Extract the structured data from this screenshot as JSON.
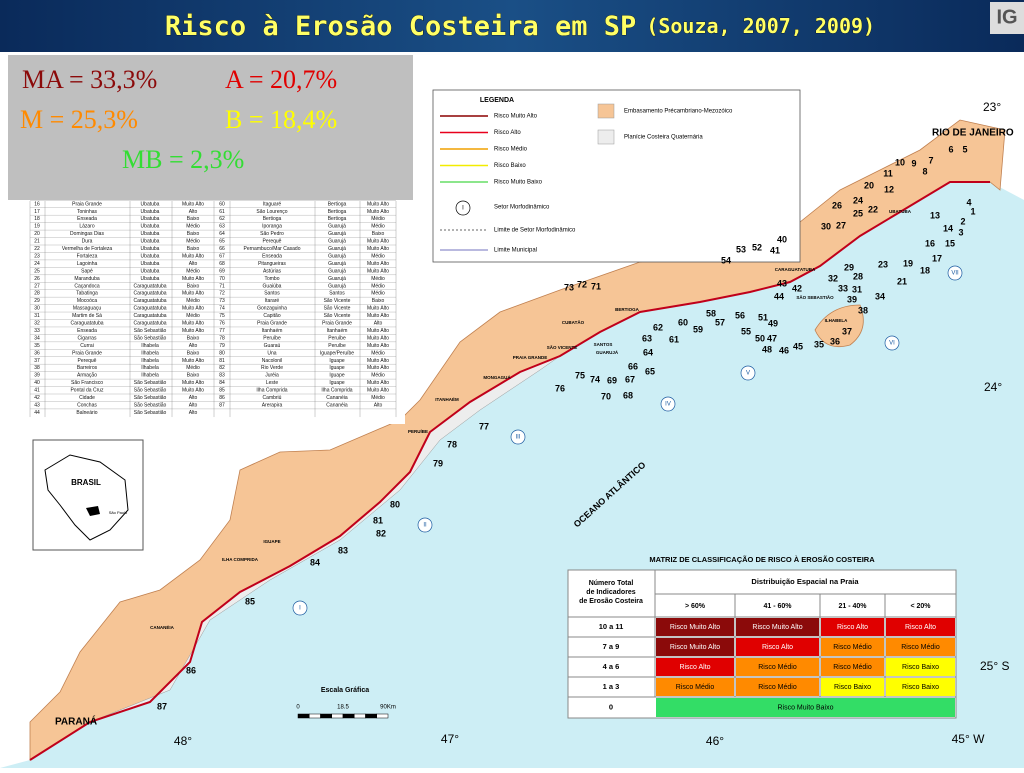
{
  "header": {
    "title": "Risco à Erosão Costeira em SP",
    "citation": "(Souza, 2007, 2009)",
    "logo": "IG"
  },
  "summary": [
    {
      "text": "MA = 33,3%",
      "color": "#8b0a0a"
    },
    {
      "text": "A = 20,7%",
      "color": "#e00000"
    },
    {
      "text": "M = 25,3%",
      "color": "#ff8a00"
    },
    {
      "text": "B = 18,4%",
      "color": "#ffff00"
    },
    {
      "text": "MB = 2,3%",
      "color": "#33dd33"
    }
  ],
  "beach_table": {
    "rows": [
      [
        "16",
        "Praia Grande",
        "Ubatuba",
        "Muito Alto",
        "60",
        "Itaguaré",
        "Bertioga",
        "Muito Alto"
      ],
      [
        "17",
        "Toninhas",
        "Ubatuba",
        "Alto",
        "61",
        "São Lourenço",
        "Bertioga",
        "Muito Alto"
      ],
      [
        "18",
        "Enseada",
        "Ubatuba",
        "Baixo",
        "62",
        "Bertioga",
        "Bertioga",
        "Médio"
      ],
      [
        "19",
        "Lázaro",
        "Ubatuba",
        "Médio",
        "63",
        "Iporanga",
        "Guarujá",
        "Médio"
      ],
      [
        "20",
        "Domingas Dias",
        "Ubatuba",
        "Baixo",
        "64",
        "São Pedro",
        "Guarujá",
        "Baixo"
      ],
      [
        "21",
        "Dura",
        "Ubatuba",
        "Médio",
        "65",
        "Perequê",
        "Guarujá",
        "Muito Alto"
      ],
      [
        "22",
        "Vermelha de Fortaleza",
        "Ubatuba",
        "Baixo",
        "66",
        "Pernambuco/Mar Casado",
        "Guarujá",
        "Muito Alto"
      ],
      [
        "23",
        "Fortaleza",
        "Ubatuba",
        "Muito Alto",
        "67",
        "Enseada",
        "Guarujá",
        "Médio"
      ],
      [
        "24",
        "Lagoinha",
        "Ubatuba",
        "Alto",
        "68",
        "Pitangueiras",
        "Guarujá",
        "Muito Alto"
      ],
      [
        "25",
        "Sapé",
        "Ubatuba",
        "Médio",
        "69",
        "Astúrias",
        "Guarujá",
        "Muito Alto"
      ],
      [
        "26",
        "Maranduba",
        "Ubatuba",
        "Muito Alto",
        "70",
        "Tombo",
        "Guarujá",
        "Médio"
      ],
      [
        "27",
        "Caçandoca",
        "Caraguatatuba",
        "Baixo",
        "71",
        "Guaiúba",
        "Guarujá",
        "Médio"
      ],
      [
        "28",
        "Tabatinga",
        "Caraguatatuba",
        "Muito Alto",
        "72",
        "Santos",
        "Santos",
        "Médio"
      ],
      [
        "29",
        "Mocoóca",
        "Caraguatatuba",
        "Médio",
        "73",
        "Itararé",
        "São Vicente",
        "Baixo"
      ],
      [
        "30",
        "Massaguaçu",
        "Caraguatatuba",
        "Muito Alto",
        "74",
        "Gonzaguinha",
        "São Vicente",
        "Muito Alto"
      ],
      [
        "31",
        "Martim de Sá",
        "Caraguatatuba",
        "Médio",
        "75",
        "Capitão",
        "São Vicente",
        "Muito Alto"
      ],
      [
        "32",
        "Caraguatatuba",
        "Caraguatatuba",
        "Muito Alto",
        "76",
        "Praia Grande",
        "Praia Grande",
        "Alto"
      ],
      [
        "33",
        "Enseada",
        "São Sebastião",
        "Muito Alto",
        "77",
        "Itanhaém",
        "Itanhaém",
        "Muito Alto"
      ],
      [
        "34",
        "Cigarras",
        "São Sebastião",
        "Baixo",
        "78",
        "Peruíbe",
        "Peruíbe",
        "Muito Alto"
      ],
      [
        "35",
        "Currai",
        "Ilhabela",
        "Alto",
        "79",
        "Guaraú",
        "Peruíbe",
        "Muito Alto"
      ],
      [
        "36",
        "Praia Grande",
        "Ilhabela",
        "Baixo",
        "80",
        "Una",
        "Iguape/Peruíbe",
        "Médio"
      ],
      [
        "37",
        "Perequê",
        "Ilhabela",
        "Muito Alto",
        "81",
        "Nacolonil",
        "Iguape",
        "Muito Alto"
      ],
      [
        "38",
        "Barreiros",
        "Ilhabela",
        "Médio",
        "82",
        "Rio Verde",
        "Iguape",
        "Muito Alto"
      ],
      [
        "39",
        "Armação",
        "Ilhabela",
        "Baixo",
        "83",
        "Juréia",
        "Iguape",
        "Médio"
      ],
      [
        "40",
        "São Francisco",
        "São Sebastião",
        "Muito Alto",
        "84",
        "Leste",
        "Iguape",
        "Muito Alto"
      ],
      [
        "41",
        "Pontal da Cruz",
        "São Sebastião",
        "Muito Alto",
        "85",
        "Ilha Comprida",
        "Ilha Comprida",
        "Muito Alto"
      ],
      [
        "42",
        "Cidade",
        "São Sebastião",
        "Alto",
        "86",
        "Cambriú",
        "Cananéia",
        "Médio"
      ],
      [
        "43",
        "Conchas",
        "São Sebastião",
        "Alto",
        "87",
        "Arerapira",
        "Cananéia",
        "Alto"
      ],
      [
        "44",
        "Balneário",
        "São Sebastião",
        "Alto"
      ]
    ]
  },
  "legend": {
    "title": "LEGENDA",
    "lines": [
      {
        "label": "Risco Muito Alto",
        "color": "#8b0000"
      },
      {
        "label": "Risco Alto",
        "color": "#e8001c"
      },
      {
        "label": "Risco Médio",
        "color": "#f0a000"
      },
      {
        "label": "Risco Baixo",
        "color": "#f2ec00"
      },
      {
        "label": "Risco Muito Baixo",
        "color": "#66dd66"
      }
    ],
    "areas": [
      {
        "label": "Embasamento Précambriano-Mezozóico",
        "color": "#f6c596"
      },
      {
        "label": "Planície Costeira Quaternária",
        "color": "#ededed"
      }
    ],
    "sector_symbol": "I",
    "sector": "Setor Morfodinâmico",
    "sector_limit": "Limite de Setor Morfodinâmico",
    "municipal_limit": "Limite Municipal"
  },
  "map": {
    "regions": [
      "RIO DE JANEIRO",
      "PARANÁ"
    ],
    "ocean": "OCEANO ATLÂNTICO",
    "latitudes": [
      "23°",
      "24°",
      "25° S"
    ],
    "longitudes": [
      "48°",
      "47°",
      "46°",
      "45° W"
    ],
    "cities": [
      "UBATUBA",
      "CARAGUATATUBA",
      "SÃO SEBASTIÃO",
      "ILHABELA",
      "BERTIOGA",
      "CUBATÃO",
      "SANTOS",
      "SÃO VICENTE",
      "GUARUJÁ",
      "PRAIA GRANDE",
      "MONGAGUÁ",
      "ITANHAÉM",
      "PERUÍBE",
      "IGUAPE",
      "ILHA COMPRIDA",
      "CANANÉIA"
    ],
    "sectors": [
      "I",
      "II",
      "III",
      "IV",
      "V",
      "VI",
      "VII"
    ],
    "beach_numbers": [
      1,
      2,
      3,
      4,
      5,
      6,
      7,
      8,
      9,
      10,
      11,
      12,
      13,
      14,
      15,
      16,
      17,
      18,
      19,
      20,
      21,
      22,
      23,
      24,
      25,
      26,
      27,
      28,
      29,
      30,
      31,
      32,
      33,
      34,
      35,
      36,
      37,
      38,
      39,
      40,
      41,
      42,
      43,
      44,
      45,
      46,
      47,
      48,
      49,
      50,
      51,
      52,
      53,
      54,
      55,
      56,
      57,
      58,
      59,
      60,
      61,
      62,
      63,
      64,
      65,
      66,
      67,
      68,
      69,
      70,
      71,
      72,
      73,
      74,
      75,
      76,
      77,
      78,
      79,
      80,
      81,
      82,
      83,
      84,
      85,
      86,
      87
    ],
    "inset": {
      "country": "BRASIL",
      "state": "São Paulo"
    },
    "scale": {
      "title": "Escala Gráfica",
      "ticks": [
        "0",
        "18.5",
        "90Km"
      ]
    }
  },
  "matrix": {
    "title": "MATRIZ DE CLASSIFICAÇÃO DE RISCO À EROSÃO COSTEIRA",
    "row_header": "Número Total de Indicadores de Erosão Costeira",
    "col_group": "Distribuição Espacial na Praia",
    "columns": [
      "> 60%",
      "41 - 60%",
      "21 - 40%",
      "< 20%"
    ],
    "rows": [
      {
        "label": "10 a 11",
        "cells": [
          {
            "label": "Risco Muito Alto",
            "color": "#8b0a0a"
          },
          {
            "label": "Risco Muito Alto",
            "color": "#8b0a0a"
          },
          {
            "label": "Risco Alto",
            "color": "#e00000"
          },
          {
            "label": "Risco Alto",
            "color": "#e00000"
          }
        ]
      },
      {
        "label": "7 a 9",
        "cells": [
          {
            "label": "Risco Muito Alto",
            "color": "#8b0a0a"
          },
          {
            "label": "Risco Alto",
            "color": "#e00000"
          },
          {
            "label": "Risco Médio",
            "color": "#ff8a00"
          },
          {
            "label": "Risco Médio",
            "color": "#ff8a00"
          }
        ]
      },
      {
        "label": "4 a 6",
        "cells": [
          {
            "label": "Risco Alto",
            "color": "#e00000"
          },
          {
            "label": "Risco Médio",
            "color": "#ff8a00"
          },
          {
            "label": "Risco Médio",
            "color": "#ff8a00"
          },
          {
            "label": "Risco Baixo",
            "color": "#ffff00"
          }
        ]
      },
      {
        "label": "1 a 3",
        "cells": [
          {
            "label": "Risco Médio",
            "color": "#ff8a00"
          },
          {
            "label": "Risco Médio",
            "color": "#ff8a00"
          },
          {
            "label": "Risco Baixo",
            "color": "#ffff00"
          },
          {
            "label": "Risco Baixo",
            "color": "#ffff00"
          }
        ]
      },
      {
        "label": "0",
        "cells": [
          {
            "label": "Risco Muito Baixo",
            "color": "#33dd66"
          }
        ]
      }
    ]
  }
}
